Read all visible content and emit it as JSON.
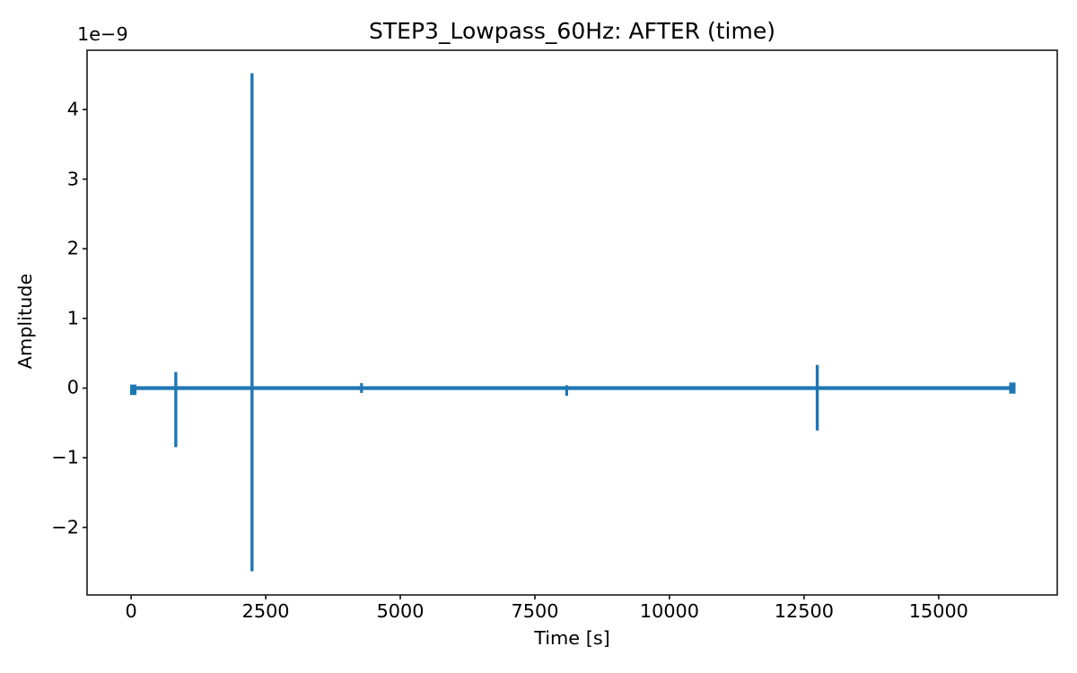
{
  "chart_data": {
    "type": "line",
    "title": "STEP3_Lowpass_60Hz: AFTER (time)",
    "xlabel": "Time [s]",
    "ylabel": "Amplitude",
    "y_offset_text": "1e−9",
    "y_values_unit": "1e-9",
    "x_tick_values": [
      0,
      2500,
      5000,
      7500,
      10000,
      12500,
      15000
    ],
    "x_tick_labels": [
      "0",
      "2500",
      "5000",
      "7500",
      "10000",
      "12500",
      "15000"
    ],
    "y_tick_values": [
      -2,
      -1,
      0,
      1,
      2,
      3,
      4
    ],
    "y_tick_labels": [
      "−2",
      "−1",
      "0",
      "1",
      "2",
      "3",
      "4"
    ],
    "xlim": [
      -819,
      17203
    ],
    "ylim": [
      -2.97,
      4.85
    ],
    "grid": false,
    "legend": null,
    "line_color": "#1f77b4",
    "axis_color": "#1a1a1a",
    "baseline": {
      "t_start": 0,
      "t_end": 16384,
      "value": 0
    },
    "spikes": [
      {
        "t": 40,
        "peak": 0.05,
        "trough": -0.1,
        "w": 7
      },
      {
        "t": 830,
        "peak": 0.23,
        "trough": -0.85,
        "w": 3.4
      },
      {
        "t": 2245,
        "peak": 4.52,
        "trough": -2.63,
        "w": 3.4
      },
      {
        "t": 4280,
        "peak": 0.07,
        "trough": -0.07,
        "w": 3.2
      },
      {
        "t": 8090,
        "peak": 0.04,
        "trough": -0.11,
        "w": 3.2
      },
      {
        "t": 12745,
        "peak": 0.33,
        "trough": -0.61,
        "w": 3.4
      },
      {
        "t": 16370,
        "peak": 0.08,
        "trough": -0.08,
        "w": 7
      }
    ]
  }
}
